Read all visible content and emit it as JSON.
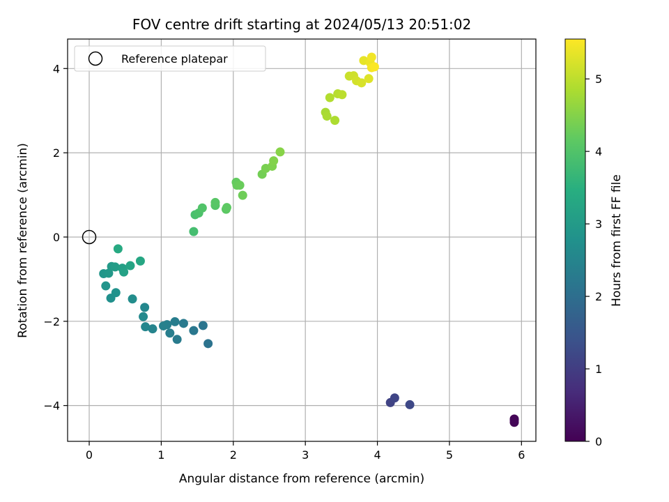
{
  "chart_data": {
    "type": "scatter",
    "title": "FOV centre drift starting at 2024/05/13 20:51:02",
    "xlabel": "Angular distance from reference (arcmin)",
    "ylabel": "Rotation from reference (arcmin)",
    "xlim": [
      -0.3,
      6.2
    ],
    "ylim": [
      -4.85,
      4.7
    ],
    "xticks": [
      0,
      1,
      2,
      3,
      4,
      5,
      6
    ],
    "yticks": [
      -4,
      -2,
      0,
      2,
      4
    ],
    "grid": true,
    "legend": {
      "placement": "upper-left",
      "entries": [
        "Reference platepar"
      ]
    },
    "reference_point": {
      "x": 0,
      "y": 0
    },
    "colorbar": {
      "label": "Hours from first FF file",
      "colormap": "viridis",
      "range": [
        0,
        5.55
      ],
      "ticks": [
        0,
        1,
        2,
        3,
        4,
        5
      ]
    },
    "points": [
      {
        "x": 5.9,
        "y": -4.32,
        "c": 0.02
      },
      {
        "x": 5.9,
        "y": -4.4,
        "c": 0.05
      },
      {
        "x": 5.9,
        "y": -4.35,
        "c": 0.08
      },
      {
        "x": 4.18,
        "y": -3.93,
        "c": 1.1
      },
      {
        "x": 4.24,
        "y": -3.82,
        "c": 1.15
      },
      {
        "x": 4.45,
        "y": -3.98,
        "c": 1.2
      },
      {
        "x": 1.65,
        "y": -2.53,
        "c": 2.1
      },
      {
        "x": 1.58,
        "y": -2.1,
        "c": 2.15
      },
      {
        "x": 1.45,
        "y": -2.22,
        "c": 2.2
      },
      {
        "x": 1.31,
        "y": -2.05,
        "c": 2.25
      },
      {
        "x": 1.22,
        "y": -2.43,
        "c": 2.28
      },
      {
        "x": 1.19,
        "y": -2.01,
        "c": 2.32
      },
      {
        "x": 1.12,
        "y": -2.28,
        "c": 2.35
      },
      {
        "x": 1.08,
        "y": -2.08,
        "c": 2.38
      },
      {
        "x": 1.03,
        "y": -2.11,
        "c": 2.42
      },
      {
        "x": 0.88,
        "y": -2.18,
        "c": 2.48
      },
      {
        "x": 0.78,
        "y": -2.13,
        "c": 2.52
      },
      {
        "x": 0.77,
        "y": -1.67,
        "c": 2.56
      },
      {
        "x": 0.75,
        "y": -1.89,
        "c": 2.6
      },
      {
        "x": 0.6,
        "y": -1.47,
        "c": 2.68
      },
      {
        "x": 0.3,
        "y": -1.45,
        "c": 2.75
      },
      {
        "x": 0.37,
        "y": -1.32,
        "c": 2.8
      },
      {
        "x": 0.23,
        "y": -1.16,
        "c": 2.85
      },
      {
        "x": 0.2,
        "y": -0.87,
        "c": 2.9
      },
      {
        "x": 0.27,
        "y": -0.86,
        "c": 2.95
      },
      {
        "x": 0.31,
        "y": -0.7,
        "c": 3.0
      },
      {
        "x": 0.36,
        "y": -0.71,
        "c": 3.05
      },
      {
        "x": 0.46,
        "y": -0.74,
        "c": 3.1
      },
      {
        "x": 0.48,
        "y": -0.83,
        "c": 3.15
      },
      {
        "x": 0.57,
        "y": -0.68,
        "c": 3.22
      },
      {
        "x": 0.71,
        "y": -0.57,
        "c": 3.28
      },
      {
        "x": 0.4,
        "y": -0.28,
        "c": 3.35
      },
      {
        "x": 1.45,
        "y": 0.13,
        "c": 3.85
      },
      {
        "x": 1.47,
        "y": 0.53,
        "c": 3.9
      },
      {
        "x": 1.52,
        "y": 0.57,
        "c": 3.95
      },
      {
        "x": 1.57,
        "y": 0.69,
        "c": 4.0
      },
      {
        "x": 1.75,
        "y": 0.75,
        "c": 4.05
      },
      {
        "x": 1.75,
        "y": 0.82,
        "c": 4.08
      },
      {
        "x": 1.9,
        "y": 0.66,
        "c": 4.12
      },
      {
        "x": 1.91,
        "y": 0.7,
        "c": 4.15
      },
      {
        "x": 2.04,
        "y": 1.3,
        "c": 4.2
      },
      {
        "x": 2.05,
        "y": 1.23,
        "c": 4.23
      },
      {
        "x": 2.09,
        "y": 1.23,
        "c": 4.26
      },
      {
        "x": 2.13,
        "y": 0.99,
        "c": 4.3
      },
      {
        "x": 2.4,
        "y": 1.49,
        "c": 4.35
      },
      {
        "x": 2.45,
        "y": 1.63,
        "c": 4.4
      },
      {
        "x": 2.54,
        "y": 1.68,
        "c": 4.44
      },
      {
        "x": 2.56,
        "y": 1.81,
        "c": 4.48
      },
      {
        "x": 2.65,
        "y": 2.02,
        "c": 4.52
      },
      {
        "x": 3.28,
        "y": 2.96,
        "c": 4.8
      },
      {
        "x": 3.3,
        "y": 2.87,
        "c": 4.83
      },
      {
        "x": 3.41,
        "y": 2.77,
        "c": 4.86
      },
      {
        "x": 3.34,
        "y": 3.31,
        "c": 4.9
      },
      {
        "x": 3.45,
        "y": 3.4,
        "c": 4.94
      },
      {
        "x": 3.51,
        "y": 3.38,
        "c": 4.98
      },
      {
        "x": 3.61,
        "y": 3.82,
        "c": 5.1
      },
      {
        "x": 3.67,
        "y": 3.83,
        "c": 5.14
      },
      {
        "x": 3.71,
        "y": 3.71,
        "c": 5.18
      },
      {
        "x": 3.78,
        "y": 3.66,
        "c": 5.22
      },
      {
        "x": 3.88,
        "y": 3.76,
        "c": 5.28
      },
      {
        "x": 3.81,
        "y": 4.19,
        "c": 5.35
      },
      {
        "x": 3.9,
        "y": 4.14,
        "c": 5.4
      },
      {
        "x": 3.92,
        "y": 4.27,
        "c": 5.45
      },
      {
        "x": 3.92,
        "y": 4.02,
        "c": 5.48
      },
      {
        "x": 3.96,
        "y": 4.04,
        "c": 5.52
      }
    ]
  }
}
